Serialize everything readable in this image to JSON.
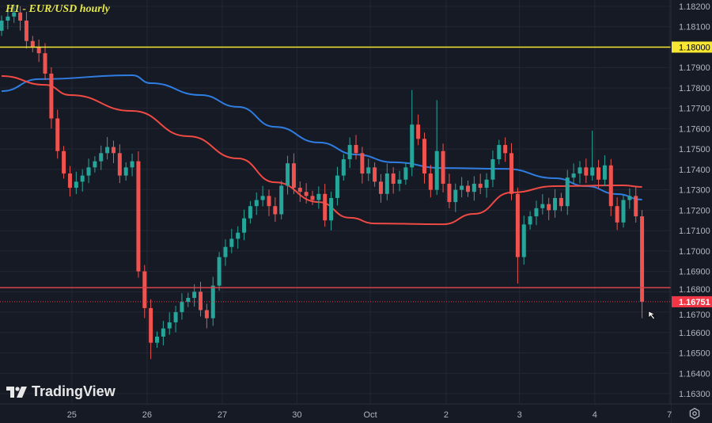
{
  "header": {
    "title": "H1 - EUR/USD hourly"
  },
  "branding": {
    "logo_text": "TradingView"
  },
  "settings_icon": "gear-hex-icon",
  "colors": {
    "background": "#161a25",
    "grid": "#232734",
    "up": "#26a69a",
    "down": "#ef5350",
    "ma_blue": "#2f7de1",
    "ma_red": "#ef4a44",
    "level_yellow": "#f7e733",
    "level_red": "#d9434a",
    "axis_text": "#b2b5be"
  },
  "chart_data": {
    "type": "candlestick",
    "title": "H1 - EUR/USD hourly",
    "ylim": [
      1.1625,
      1.1823
    ],
    "y_ticks": [
      "1.18200",
      "1.18100",
      "1.18000",
      "1.17900",
      "1.17800",
      "1.17700",
      "1.17600",
      "1.17500",
      "1.17400",
      "1.17300",
      "1.17200",
      "1.17100",
      "1.17000",
      "1.16900",
      "1.16800",
      "1.16700",
      "1.16600",
      "1.16500",
      "1.16400",
      "1.16300"
    ],
    "x_ticks": [
      {
        "label": "25",
        "at": 11.3
      },
      {
        "label": "26",
        "at": 23.4
      },
      {
        "label": "27",
        "at": 35.5
      },
      {
        "label": "30",
        "at": 47.5
      },
      {
        "label": "Oct",
        "at": 59.3
      },
      {
        "label": "2",
        "at": 71.5
      },
      {
        "label": "3",
        "at": 83.3
      },
      {
        "label": "4",
        "at": 95.4
      },
      {
        "label": "7",
        "at": 107.4
      }
    ],
    "closes": [
      1.1813,
      1.1815,
      1.1817,
      1.1813,
      1.1803,
      1.18,
      1.1797,
      1.1787,
      1.1765,
      1.1749,
      1.1738,
      1.1731,
      1.1734,
      1.1737,
      1.1741,
      1.1744,
      1.1748,
      1.1751,
      1.1748,
      1.1737,
      1.1741,
      1.1744,
      1.169,
      1.1672,
      1.1655,
      1.1658,
      1.1662,
      1.1665,
      1.167,
      1.1675,
      1.1677,
      1.168,
      1.1671,
      1.1667,
      1.1683,
      1.1697,
      1.1702,
      1.1706,
      1.1709,
      1.1716,
      1.1722,
      1.1725,
      1.1727,
      1.1722,
      1.1718,
      1.1732,
      1.1743,
      1.1731,
      1.1729,
      1.1727,
      1.1725,
      1.1728,
      1.1715,
      1.1726,
      1.1737,
      1.1745,
      1.1752,
      1.1748,
      1.1738,
      1.1741,
      1.1734,
      1.1728,
      1.1738,
      1.1733,
      1.1735,
      1.1741,
      1.1762,
      1.1755,
      1.1738,
      1.173,
      1.1749,
      1.1733,
      1.1724,
      1.173,
      1.1732,
      1.1729,
      1.1733,
      1.1731,
      1.1735,
      1.1745,
      1.1752,
      1.1748,
      1.1728,
      1.1697,
      1.1713,
      1.1717,
      1.1721,
      1.1723,
      1.172,
      1.1726,
      1.1722,
      1.1736,
      1.1738,
      1.1741,
      1.1737,
      1.1741,
      1.1735,
      1.1742,
      1.1722,
      1.1714,
      1.1725,
      1.1727,
      1.1717,
      1.16751
    ],
    "first_open": 1.1808,
    "extremes": [
      {
        "index": 2,
        "high": 1.1821
      },
      {
        "index": 24,
        "low": 1.1647
      },
      {
        "index": 66,
        "high": 1.1779
      },
      {
        "index": 70,
        "high": 1.1774
      },
      {
        "index": 83,
        "low": 1.1684
      },
      {
        "index": 95,
        "high": 1.1759
      },
      {
        "index": 103,
        "low": 1.1667
      }
    ],
    "series": [
      {
        "type": "line",
        "color": "#2f7de1",
        "points": [
          [
            0,
            1.17784
          ],
          [
            6,
            1.17843
          ],
          [
            21,
            1.17862
          ],
          [
            24,
            1.17823
          ],
          [
            32,
            1.17765
          ],
          [
            38,
            1.17707
          ],
          [
            44,
            1.17609
          ],
          [
            51,
            1.17532
          ],
          [
            57,
            1.17473
          ],
          [
            63,
            1.17435
          ],
          [
            71,
            1.17407
          ],
          [
            81,
            1.17403
          ],
          [
            89,
            1.17357
          ],
          [
            94,
            1.17318
          ],
          [
            99,
            1.17279
          ],
          [
            103,
            1.17252
          ]
        ]
      },
      {
        "type": "line",
        "color": "#ef4a44",
        "points": [
          [
            0,
            1.17858
          ],
          [
            7,
            1.17815
          ],
          [
            11,
            1.17765
          ],
          [
            21,
            1.17687
          ],
          [
            30,
            1.17563
          ],
          [
            38,
            1.17454
          ],
          [
            44,
            1.17337
          ],
          [
            51,
            1.1724
          ],
          [
            56,
            1.17163
          ],
          [
            60,
            1.17135
          ],
          [
            71,
            1.17131
          ],
          [
            76,
            1.17182
          ],
          [
            82,
            1.17287
          ],
          [
            89,
            1.17318
          ],
          [
            100,
            1.17322
          ],
          [
            103,
            1.17314
          ]
        ]
      }
    ],
    "levels": [
      {
        "price": 1.18,
        "label": "1.18000",
        "color": "#f7e733",
        "style": "solid"
      },
      {
        "price": 1.1682,
        "color": "#d9434a",
        "style": "solid"
      },
      {
        "price": 1.16751,
        "label": "1.16751",
        "color": "#f23645",
        "style": "dotted",
        "current": true
      }
    ]
  }
}
